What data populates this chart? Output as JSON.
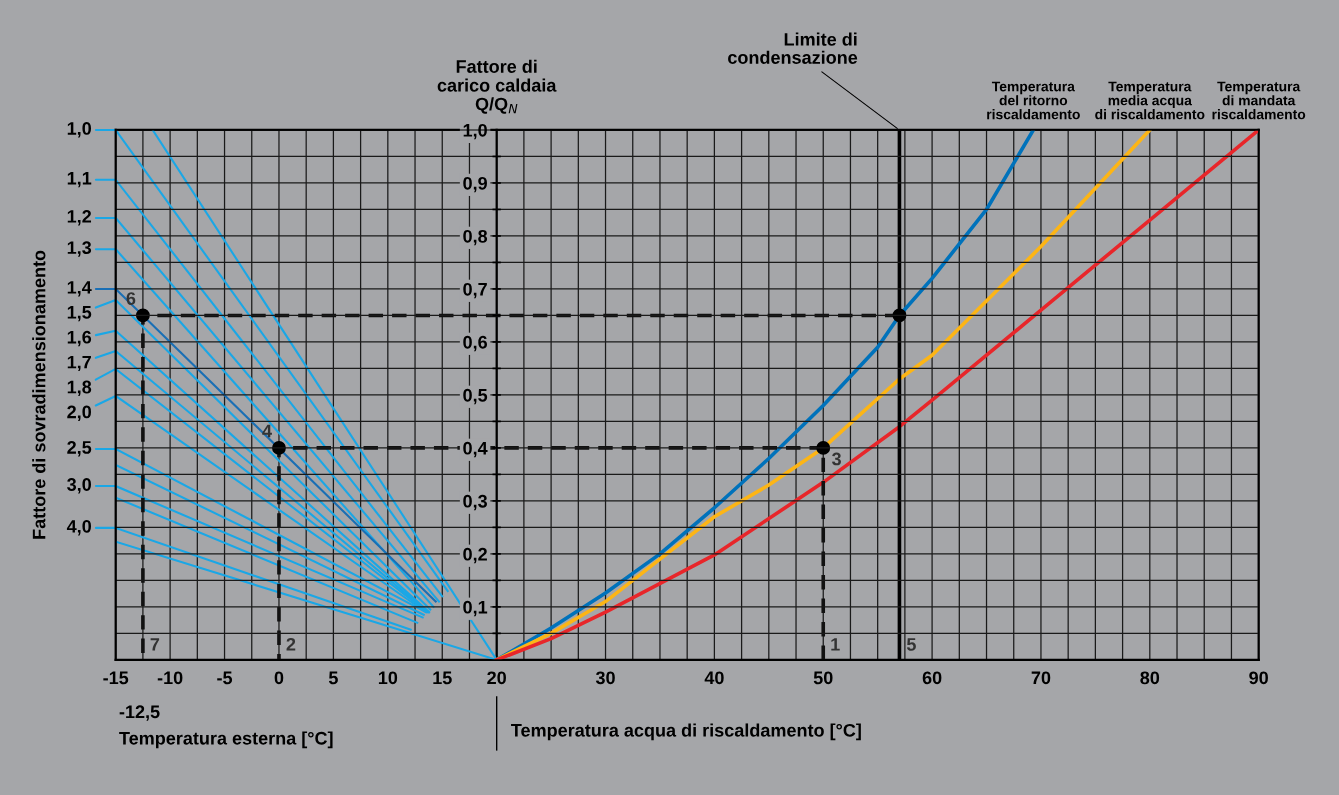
{
  "chart_data": {
    "type": "line",
    "xlabel": "Temperatura acqua di riscaldamento [°C]",
    "ylabel": "Fattore di\ncarico caldaia\nQ/Q$_{N}$",
    "y2label": "Fattore di sovradimensionamento",
    "xlim": [
      -15,
      90
    ],
    "xticks": [
      -15,
      {
        "value": -12.5,
        "label": null
      },
      -10,
      {
        "value": -7.5,
        "label": null
      },
      -5,
      {
        "value": -2.5,
        "label": null
      },
      0,
      {
        "value": 2.5,
        "label": null
      },
      5,
      {
        "value": 7.5,
        "label": null
      },
      10,
      {
        "value": 12.5,
        "label": null
      },
      15,
      {
        "value": 17.5,
        "label": null
      },
      20,
      {
        "value": 22.5,
        "label": null
      },
      {
        "value": 25,
        "label": null
      },
      {
        "value": 27.5,
        "label": null
      },
      30,
      {
        "value": 32.5,
        "label": null
      },
      {
        "value": 35,
        "label": null
      },
      {
        "value": 37.5,
        "label": null
      },
      40,
      {
        "value": 42.5,
        "label": null
      },
      {
        "value": 45,
        "label": null
      },
      {
        "value": 47.5,
        "label": null
      },
      50,
      {
        "value": 52.5,
        "label": null
      },
      {
        "value": 55,
        "label": null
      },
      {
        "value": 57.5,
        "label": null
      },
      60,
      {
        "value": 62.5,
        "label": null
      },
      {
        "value": 65,
        "label": null
      },
      {
        "value": 67.5,
        "label": null
      },
      70,
      {
        "value": 72.5,
        "label": null
      },
      {
        "value": 75,
        "label": null
      },
      {
        "value": 77.5,
        "label": null
      },
      80,
      {
        "value": 82.5,
        "label": null
      },
      {
        "value": 85,
        "label": null
      },
      {
        "value": 87.5,
        "label": null
      },
      90
    ],
    "ylim": [
      0,
      1
    ],
    "yticks": [
      {
        "value": 0.05,
        "label": null
      },
      {
        "value": 0.1,
        "label": "0,1"
      },
      {
        "value": 0.15,
        "label": null
      },
      {
        "value": 0.2,
        "label": "0,2"
      },
      {
        "value": 0.25,
        "label": null
      },
      {
        "value": 0.3,
        "label": "0,3"
      },
      {
        "value": 0.35,
        "label": null
      },
      {
        "value": 0.4,
        "label": "0,4"
      },
      {
        "value": 0.45,
        "label": null
      },
      {
        "value": 0.5,
        "label": "0,5"
      },
      {
        "value": 0.55,
        "label": null
      },
      {
        "value": 0.6,
        "label": "0,6"
      },
      {
        "value": 0.65,
        "label": null
      },
      {
        "value": 0.7,
        "label": "0,7"
      },
      {
        "value": 0.75,
        "label": null
      },
      {
        "value": 0.8,
        "label": "0,8"
      },
      {
        "value": 0.85,
        "label": null
      },
      {
        "value": 0.9,
        "label": "0,9"
      },
      {
        "value": 0.95,
        "label": null
      },
      {
        "value": 1.0,
        "label": "1,0"
      }
    ],
    "grid": true,
    "legend": "left",
    "series": [
      {
        "name": "1,0",
        "color": "#1aa7e6",
        "x": [
          -15,
          15.5
        ],
        "values": [
          1.0,
          0.13
        ]
      },
      {
        "color": "#1aa7e6",
        "x": [
          -11.6,
          20
        ],
        "values": [
          1.0,
          0
        ]
      },
      {
        "name": "1,1",
        "color": "#1aa7e6",
        "x": [
          -15,
          15.0
        ],
        "values": [
          0.906,
          0.12
        ]
      },
      {
        "name": "1,2",
        "color": "#1aa7e6",
        "x": [
          -15,
          14.7
        ],
        "values": [
          0.834,
          0.11
        ]
      },
      {
        "name": "1,3",
        "color": "#1aa7e6",
        "x": [
          -15,
          14.2
        ],
        "values": [
          0.775,
          0.1
        ]
      },
      {
        "name": "1,4",
        "color": "#1a6fb5",
        "x": [
          -15,
          14.4
        ],
        "values": [
          0.7,
          0.11
        ]
      },
      {
        "name": "1,5",
        "color": "#1aa7e6",
        "x": [
          -15,
          13.9
        ],
        "values": [
          0.679,
          0.095
        ]
      },
      {
        "name": "1,6",
        "color": "#1aa7e6",
        "x": [
          -15,
          13.8
        ],
        "values": [
          0.621,
          0.09
        ]
      },
      {
        "name": "1,7",
        "color": "#1aa7e6",
        "x": [
          -15,
          13.7
        ],
        "values": [
          0.583,
          0.09
        ]
      },
      {
        "name": "1,8",
        "color": "#1aa7e6",
        "x": [
          -15,
          13.6
        ],
        "values": [
          0.549,
          0.09
        ]
      },
      {
        "name": "2,0",
        "color": "#1aa7e6",
        "x": [
          -15,
          13.5
        ],
        "values": [
          0.498,
          0.09
        ]
      },
      {
        "name": "2,5",
        "color": "#1aa7e6",
        "x": [
          -15,
          13.5
        ],
        "values": [
          0.398,
          0.09
        ]
      },
      {
        "color": "#1aa7e6",
        "x": [
          -15,
          13.3
        ],
        "values": [
          0.368,
          0.085
        ]
      },
      {
        "name": "3,0",
        "color": "#1aa7e6",
        "x": [
          -15,
          13.2
        ],
        "values": [
          0.328,
          0.08
        ]
      },
      {
        "color": "#1aa7e6",
        "x": [
          -15,
          12.7
        ],
        "values": [
          0.306,
          0.07
        ]
      },
      {
        "name": "4,0",
        "color": "#1aa7e6",
        "x": [
          -15,
          12.1
        ],
        "values": [
          0.249,
          0.057
        ]
      },
      {
        "color": "#1aa7e6",
        "x": [
          -15,
          20
        ],
        "values": [
          0.223,
          0
        ]
      },
      {
        "name": "Temperatura\ndel ritorno\nriscaldamento",
        "color": "#0072bb",
        "x": [
          20,
          25,
          30,
          35,
          40,
          45,
          50,
          55,
          57,
          60,
          65,
          69.3
        ],
        "values": [
          0,
          0.06,
          0.126,
          0.2,
          0.287,
          0.38,
          0.48,
          0.59,
          0.65,
          0.72,
          0.85,
          1.0
        ]
      },
      {
        "name": "Temperatura\nmedia acqua\ndi riscaldamento",
        "color": "#fdb515",
        "x": [
          20,
          25,
          30,
          35,
          40,
          45,
          50,
          57,
          60,
          70,
          80
        ],
        "values": [
          0,
          0.05,
          0.11,
          0.19,
          0.27,
          0.33,
          0.4,
          0.53,
          0.575,
          0.78,
          1.0
        ]
      },
      {
        "name": "Temperatura\ndi mandata\nriscaldamento",
        "color": "#e8262a",
        "x": [
          20,
          25,
          30,
          40,
          50,
          57,
          60,
          70,
          80,
          90
        ],
        "values": [
          0,
          0.04,
          0.09,
          0.198,
          0.335,
          0.44,
          0.49,
          0.66,
          0.83,
          1.0
        ]
      },
      {
        "color": "#111111",
        "line_style": "dashed",
        "x": [
          50,
          50,
          0,
          0
        ],
        "values": [
          0,
          0.4,
          0.4,
          0
        ]
      },
      {
        "color": "#111111",
        "line_style": "dashed",
        "x": [
          57,
          -12.5,
          -12.5
        ],
        "values": [
          0.65,
          0.65,
          0
        ]
      },
      {
        "type": "scatter",
        "color": "#000000",
        "marker": "circle",
        "x": [
          50,
          0,
          57,
          -12.5
        ],
        "values": [
          0.4,
          0.4,
          0.65,
          0.65
        ]
      }
    ],
    "ref_lines": [
      {
        "axis": "x",
        "value": 57,
        "label": "Limite di\ncondensazione",
        "color": "#000000",
        "line_style": "solid"
      }
    ],
    "annotations": [
      {
        "text": "1",
        "x": 50,
        "y": 0
      },
      {
        "text": "2",
        "x": 0,
        "y": 0
      },
      {
        "text": "3",
        "x": 50,
        "y": 0.4
      },
      {
        "text": "4",
        "x": 0,
        "y": 0.4
      },
      {
        "text": "5",
        "x": 57,
        "y": 0
      },
      {
        "text": "6",
        "x": -12.5,
        "y": 0.65
      },
      {
        "text": "7",
        "x": -12.5,
        "y": 0
      },
      "-12,5",
      "Temperatura esterna [°C]"
    ]
  }
}
